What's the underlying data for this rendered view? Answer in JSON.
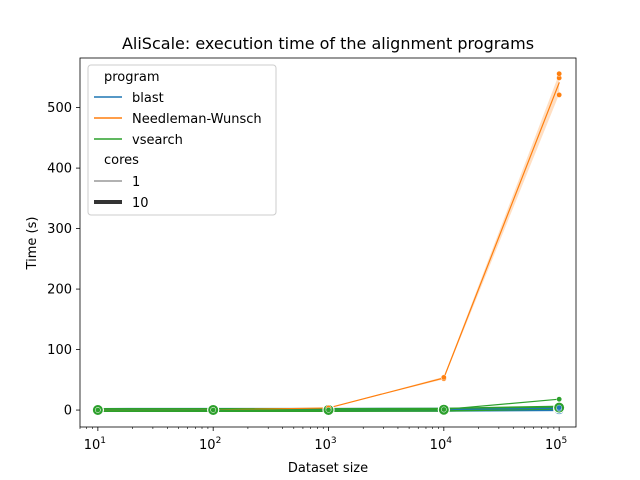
{
  "chart_data": {
    "type": "line",
    "title": "AliScale: execution time of the alignment programs",
    "xlabel": "Dataset size",
    "ylabel": "Time (s)",
    "xscale": "log",
    "xlim": [
      7,
      140000
    ],
    "ylim": [
      -28,
      582
    ],
    "x": [
      10,
      100,
      1000,
      10000,
      100000
    ],
    "xtick_labels": [
      {
        "base": "10",
        "exp": "1"
      },
      {
        "base": "10",
        "exp": "2"
      },
      {
        "base": "10",
        "exp": "3"
      },
      {
        "base": "10",
        "exp": "4"
      },
      {
        "base": "10",
        "exp": "5"
      }
    ],
    "yticks": [
      0,
      100,
      200,
      300,
      400,
      500
    ],
    "ytick_labels": [
      "0",
      "100",
      "200",
      "300",
      "400",
      "500"
    ],
    "grid": false,
    "legend": {
      "placement": "top-left",
      "program_title": "program",
      "cores_title": "cores",
      "cores_items": [
        {
          "label": "1",
          "width": "thin"
        },
        {
          "label": "10",
          "width": "thick"
        }
      ]
    },
    "series": [
      {
        "name": "blast",
        "color": "#1f77b4",
        "cores": "1",
        "values": [
          0.2,
          0.4,
          0.5,
          0.8,
          3
        ],
        "points": [
          [
            10,
            0.2
          ],
          [
            100,
            0.4
          ],
          [
            1000,
            0.5
          ],
          [
            10000,
            0.8
          ],
          [
            100000,
            2
          ],
          [
            100000,
            4
          ]
        ]
      },
      {
        "name": "blast",
        "color": "#1f77b4",
        "cores": "10",
        "values": [
          0.2,
          0.3,
          0.4,
          0.6,
          1.5
        ],
        "points": [
          [
            10,
            0.2
          ],
          [
            100,
            0.3
          ],
          [
            1000,
            0.4
          ],
          [
            10000,
            0.6
          ],
          [
            100000,
            1.5
          ]
        ]
      },
      {
        "name": "Needleman-Wunsch",
        "color": "#ff7f0e",
        "cores": "1",
        "values": [
          0.1,
          0.3,
          3.5,
          53,
          541
        ],
        "band": [
          [
            0.1,
            0.1
          ],
          [
            0.3,
            0.3
          ],
          [
            3.3,
            3.7
          ],
          [
            51,
            55
          ],
          [
            522,
            556
          ]
        ],
        "points": [
          [
            10,
            0.1
          ],
          [
            100,
            0.3
          ],
          [
            1000,
            3.4
          ],
          [
            1000,
            3.6
          ],
          [
            10000,
            52
          ],
          [
            10000,
            54
          ],
          [
            100000,
            521
          ],
          [
            100000,
            549
          ],
          [
            100000,
            556
          ]
        ]
      },
      {
        "name": "vsearch",
        "color": "#2ca02c",
        "cores": "1",
        "values": [
          0.1,
          0.2,
          0.3,
          1,
          18
        ],
        "points": [
          [
            10,
            0.1
          ],
          [
            100,
            0.2
          ],
          [
            1000,
            0.3
          ],
          [
            10000,
            1
          ],
          [
            100000,
            18
          ]
        ]
      },
      {
        "name": "vsearch",
        "color": "#2ca02c",
        "cores": "10",
        "values": [
          0.1,
          0.2,
          0.2,
          0.6,
          4
        ],
        "points": [
          [
            10,
            0.1
          ],
          [
            100,
            0.2
          ],
          [
            1000,
            0.2
          ],
          [
            10000,
            0.6
          ],
          [
            100000,
            4
          ]
        ]
      }
    ]
  }
}
